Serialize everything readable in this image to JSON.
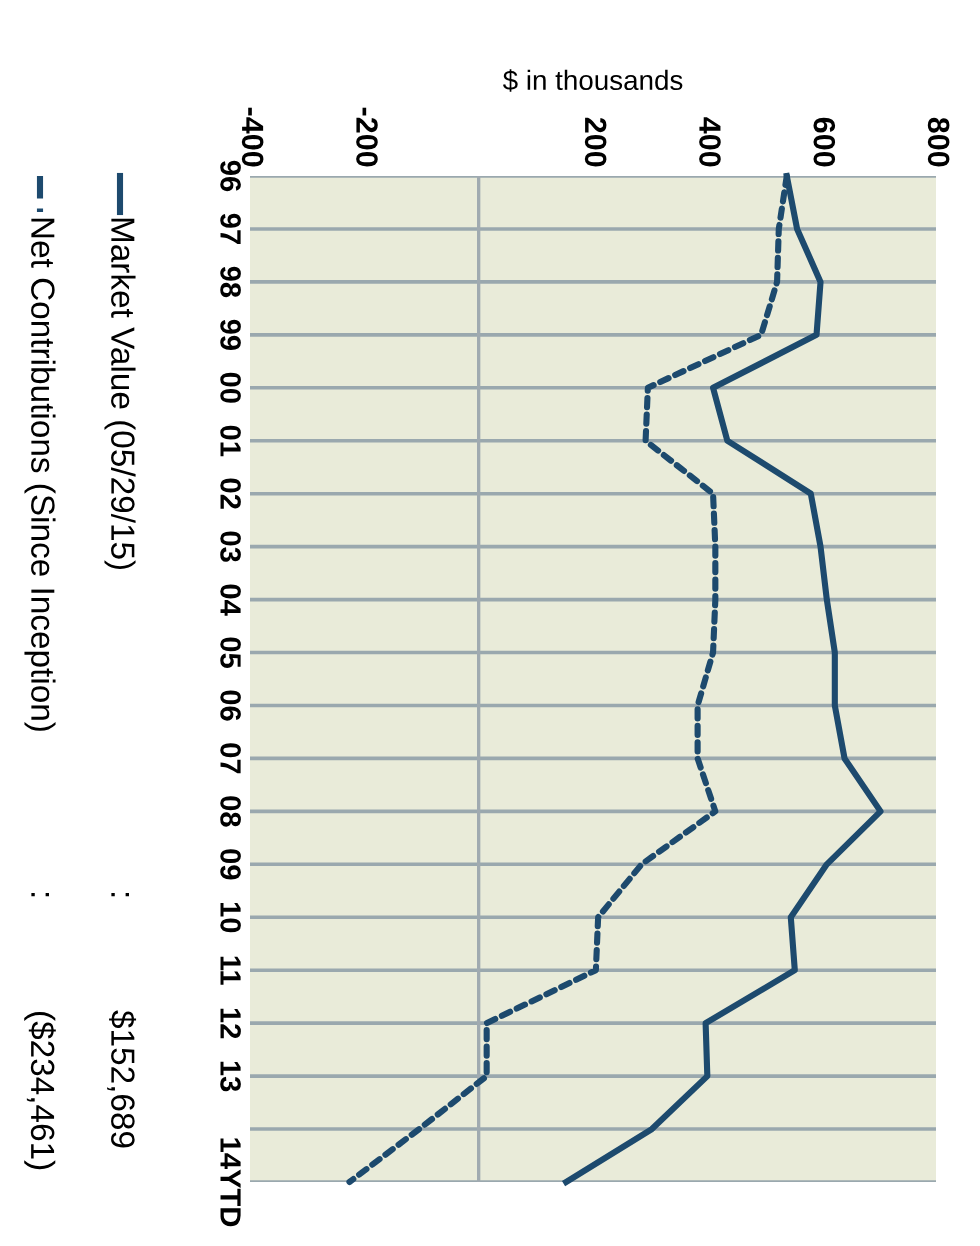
{
  "chart_data": {
    "type": "line",
    "orientation": "horizontal",
    "xlabel": "$ in thousands",
    "categories": [
      "96",
      "97",
      "98",
      "99",
      "00",
      "01",
      "02",
      "03",
      "04",
      "05",
      "06",
      "07",
      "08",
      "09",
      "10",
      "11",
      "12",
      "13",
      null,
      "14YTD"
    ],
    "series": [
      {
        "name": "Market Value (05/29/15)",
        "color": "#1d4a6e",
        "line_style": "solid",
        "values": [
          539,
          557,
          598,
          591,
          410,
          435,
          581,
          598,
          609,
          623,
          623,
          640,
          703,
          609,
          546,
          553,
          397,
          400,
          303,
          153
        ]
      },
      {
        "name": "Net Contributions (Since Inception)",
        "color": "#1d4a6e",
        "line_style": "dotted",
        "values": [
          539,
          525,
          522,
          494,
          296,
          292,
          410,
          414,
          414,
          410,
          383,
          383,
          414,
          285,
          209,
          205,
          14,
          14,
          -104,
          -226
        ]
      }
    ],
    "xlim": [
      -400,
      800
    ],
    "xticks": [
      -400,
      -200,
      200,
      400,
      600,
      800
    ],
    "ref_lines": [
      {
        "axis": "x",
        "value": 0,
        "color": "#a0aab0"
      }
    ],
    "grid": "y",
    "legend": "left",
    "annotations": [
      ":",
      "$152,689",
      ":",
      "($234,461)"
    ]
  }
}
